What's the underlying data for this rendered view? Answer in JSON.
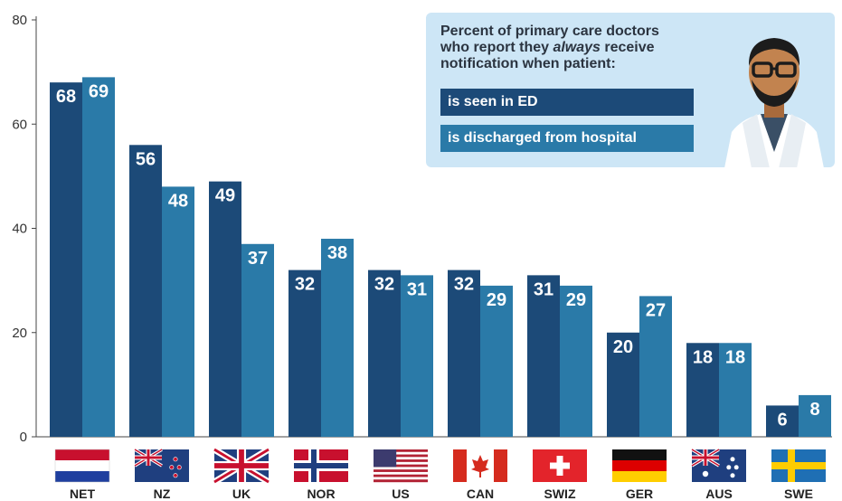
{
  "chart_data": {
    "type": "bar",
    "categories": [
      "NET",
      "NZ",
      "UK",
      "NOR",
      "US",
      "CAN",
      "SWIZ",
      "GER",
      "AUS",
      "SWE"
    ],
    "series": [
      {
        "name": "is seen in ED",
        "color": "#1c4a78",
        "values": [
          68,
          56,
          49,
          32,
          32,
          32,
          31,
          20,
          18,
          6
        ]
      },
      {
        "name": "is discharged from hospital",
        "color": "#2a7aa8",
        "values": [
          69,
          48,
          37,
          38,
          31,
          29,
          29,
          27,
          18,
          8
        ]
      }
    ],
    "ylim": [
      0,
      80
    ],
    "yticks": [
      0,
      20,
      40,
      60,
      80
    ],
    "grid": false,
    "legend_position": "top-right"
  },
  "legend": {
    "title_line1": "Percent of primary care doctors",
    "title_line2_a": "who report they ",
    "title_line2_em": "always",
    "title_line2_b": " receive",
    "title_line3": "notification when patient:",
    "item_ed": "is seen in ED",
    "item_discharged": "is discharged from hospital"
  },
  "flags": [
    "netherlands-flag",
    "new-zealand-flag",
    "uk-flag",
    "norway-flag",
    "us-flag",
    "canada-flag",
    "switzerland-flag",
    "germany-flag",
    "australia-flag",
    "sweden-flag"
  ],
  "illustration": "doctor-icon"
}
